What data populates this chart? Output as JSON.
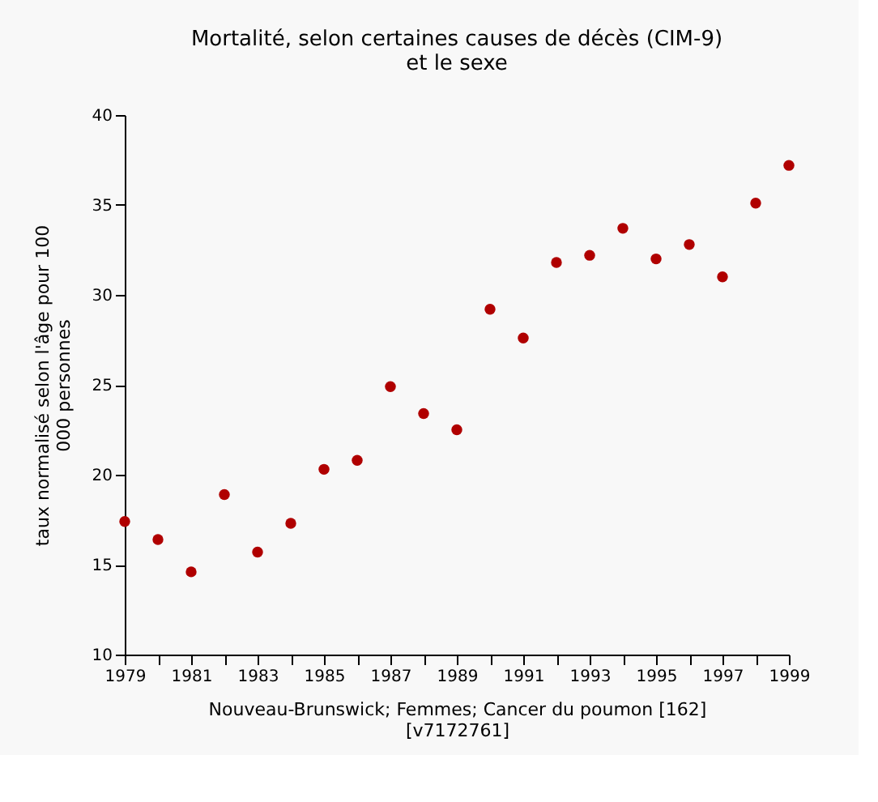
{
  "chart_data": {
    "type": "scatter",
    "title": "Mortalité, selon certaines causes de décès (CIM-9) et le sexe",
    "xlabel": "Nouveau-Brunswick; Femmes; Cancer du poumon [162] [v7172761]",
    "ylabel": "taux normalisé selon l'âge pour 100 000 personnes",
    "x": [
      1979,
      1980,
      1981,
      1982,
      1983,
      1984,
      1985,
      1986,
      1987,
      1988,
      1989,
      1990,
      1991,
      1992,
      1993,
      1994,
      1995,
      1996,
      1997,
      1998,
      1999
    ],
    "series": [
      {
        "color": "#b00000",
        "values": [
          17.4,
          16.4,
          14.6,
          18.9,
          15.7,
          17.3,
          20.3,
          20.8,
          24.9,
          23.4,
          22.5,
          29.2,
          27.6,
          31.8,
          32.2,
          33.7,
          32.0,
          32.8,
          31.0,
          35.1,
          37.2
        ]
      }
    ],
    "xlim": [
      1979,
      1999
    ],
    "xticks": [
      1979,
      {
        "value": 1980,
        "label": null
      },
      1981,
      {
        "value": 1982,
        "label": null
      },
      1983,
      {
        "value": 1984,
        "label": null
      },
      1985,
      {
        "value": 1986,
        "label": null
      },
      1987,
      {
        "value": 1988,
        "label": null
      },
      1989,
      {
        "value": 1990,
        "label": null
      },
      1991,
      {
        "value": 1992,
        "label": null
      },
      1993,
      {
        "value": 1994,
        "label": null
      },
      1995,
      {
        "value": 1996,
        "label": null
      },
      1997,
      {
        "value": 1998,
        "label": null
      },
      1999
    ],
    "ylim": [
      10,
      40
    ],
    "yticks": [
      10,
      15,
      20,
      25,
      30,
      35,
      40
    ],
    "grid": false,
    "legend": false,
    "marker": "circle"
  }
}
